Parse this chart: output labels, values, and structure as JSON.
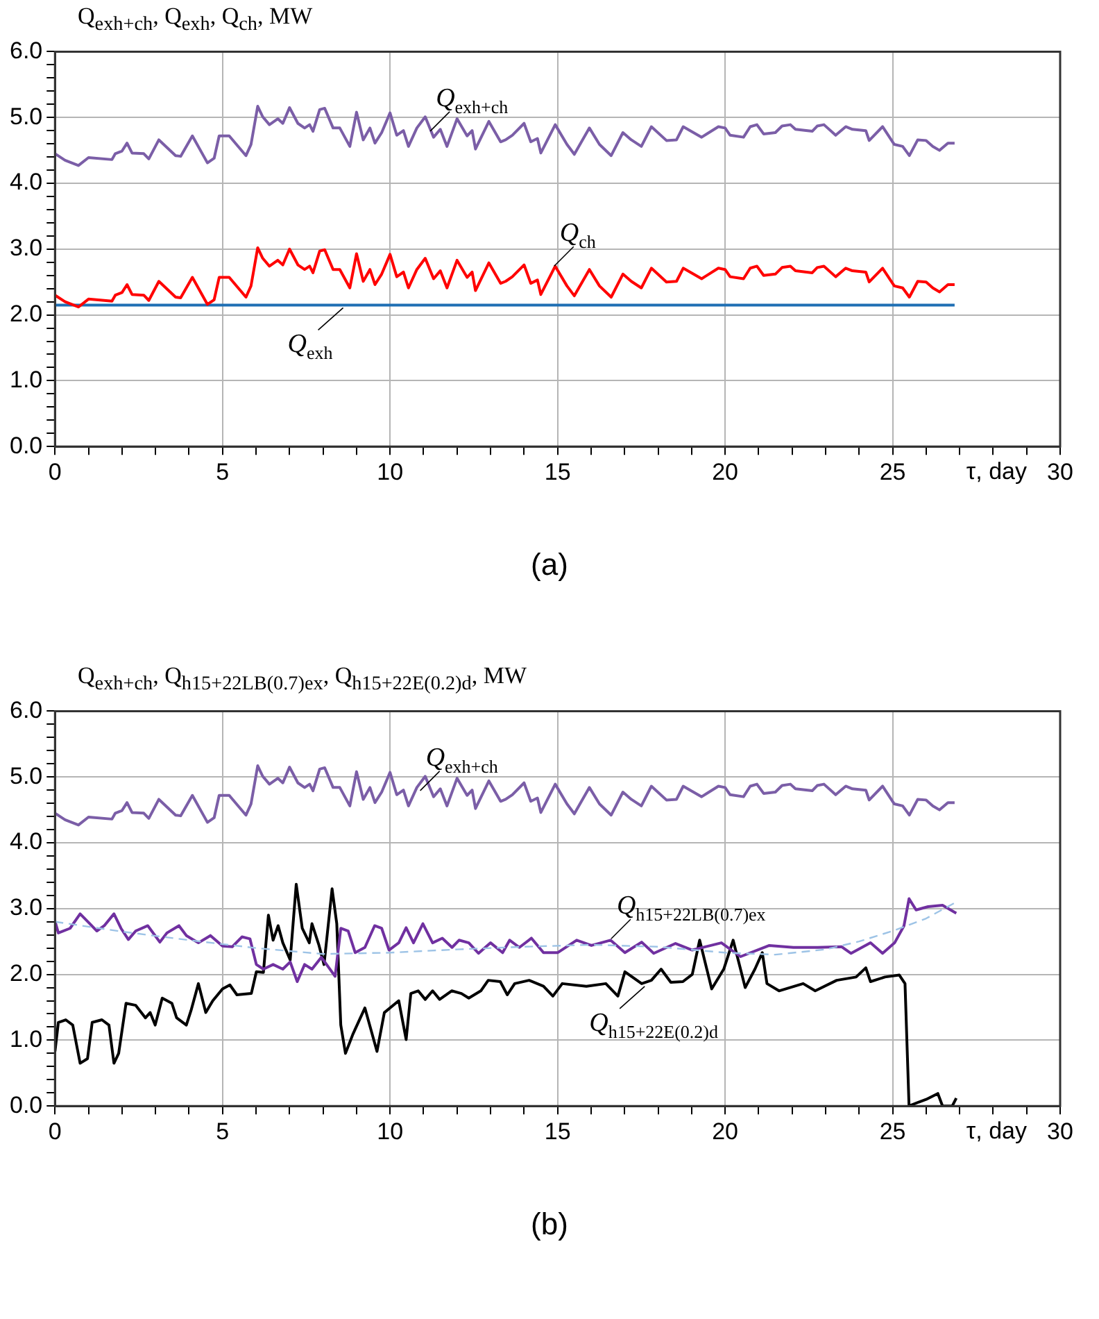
{
  "chart_data": [
    {
      "type": "line",
      "ylabel": "Q$_{exh+ch}$, Q$_{exh}$, Q$_{ch}$, MW",
      "xlabel": "τ, day",
      "grid": true,
      "marker": "none",
      "line_style": "solid",
      "xlim": [
        0,
        30
      ],
      "ylim": [
        0,
        6
      ],
      "xticks": [
        0,
        {
          "value": 1,
          "label": null
        },
        {
          "value": 2,
          "label": null
        },
        {
          "value": 3,
          "label": null
        },
        {
          "value": 4,
          "label": null
        },
        5,
        {
          "value": 6,
          "label": null
        },
        {
          "value": 7,
          "label": null
        },
        {
          "value": 8,
          "label": null
        },
        {
          "value": 9,
          "label": null
        },
        10,
        {
          "value": 11,
          "label": null
        },
        {
          "value": 12,
          "label": null
        },
        {
          "value": 13,
          "label": null
        },
        {
          "value": 14,
          "label": null
        },
        15,
        {
          "value": 16,
          "label": null
        },
        {
          "value": 17,
          "label": null
        },
        {
          "value": 18,
          "label": null
        },
        {
          "value": 19,
          "label": null
        },
        20,
        {
          "value": 21,
          "label": null
        },
        {
          "value": 22,
          "label": null
        },
        {
          "value": 23,
          "label": null
        },
        {
          "value": 24,
          "label": null
        },
        25,
        {
          "value": 26,
          "label": null
        },
        {
          "value": 27,
          "label": null
        },
        {
          "value": 28,
          "label": null
        },
        {
          "value": 29,
          "label": null
        },
        30
      ],
      "yticks": [
        {
          "value": 0,
          "label": "0.0"
        },
        {
          "value": 0.2,
          "label": null
        },
        {
          "value": 0.4,
          "label": null
        },
        {
          "value": 0.6,
          "label": null
        },
        {
          "value": 0.8,
          "label": null
        },
        {
          "value": 1,
          "label": "1.0"
        },
        {
          "value": 1.2,
          "label": null
        },
        {
          "value": 1.4,
          "label": null
        },
        {
          "value": 1.6,
          "label": null
        },
        {
          "value": 1.8,
          "label": null
        },
        {
          "value": 2,
          "label": "2.0"
        },
        {
          "value": 2.2,
          "label": null
        },
        {
          "value": 2.4,
          "label": null
        },
        {
          "value": 2.6,
          "label": null
        },
        {
          "value": 2.8,
          "label": null
        },
        {
          "value": 3,
          "label": "3.0"
        },
        {
          "value": 3.2,
          "label": null
        },
        {
          "value": 3.4,
          "label": null
        },
        {
          "value": 3.6,
          "label": null
        },
        {
          "value": 3.8,
          "label": null
        },
        {
          "value": 4,
          "label": "4.0"
        },
        {
          "value": 4.2,
          "label": null
        },
        {
          "value": 4.4,
          "label": null
        },
        {
          "value": 4.6,
          "label": null
        },
        {
          "value": 4.8,
          "label": null
        },
        {
          "value": 5,
          "label": "5.0"
        },
        {
          "value": 5.2,
          "label": null
        },
        {
          "value": 5.4,
          "label": null
        },
        {
          "value": 5.6,
          "label": null
        },
        {
          "value": 5.8,
          "label": null
        },
        {
          "value": 6,
          "label": "6.0"
        }
      ],
      "series": [
        {
          "color": "#7b5ea7",
          "x": [
            0,
            0.3,
            0.7,
            1.0,
            1.7,
            1.8,
            2.0,
            2.15,
            2.3,
            2.65,
            2.8,
            3.1,
            3.6,
            3.75,
            4.1,
            4.55,
            4.75,
            4.9,
            5.2,
            5.7,
            5.85,
            6.05,
            6.2,
            6.4,
            6.65,
            6.8,
            7.0,
            7.25,
            7.45,
            7.6,
            7.7,
            7.9,
            8.05,
            8.3,
            8.5,
            8.8,
            9.0,
            9.2,
            9.4,
            9.55,
            9.75,
            10.0,
            10.2,
            10.4,
            10.55,
            10.8,
            11.05,
            11.3,
            11.5,
            11.7,
            12.0,
            12.3,
            12.45,
            12.55,
            12.95,
            13.3,
            13.45,
            13.65,
            14.0,
            14.2,
            14.4,
            14.5,
            14.93,
            15.28,
            15.5,
            15.95,
            16.25,
            16.6,
            16.95,
            17.2,
            17.5,
            17.8,
            18.25,
            18.55,
            18.75,
            19.3,
            19.8,
            20.0,
            20.15,
            20.55,
            20.75,
            20.95,
            21.15,
            21.5,
            21.7,
            21.95,
            22.1,
            22.6,
            22.75,
            22.95,
            23.3,
            23.6,
            23.8,
            24.2,
            24.3,
            24.7,
            25.05,
            25.3,
            25.5,
            25.75,
            26.0,
            26.2,
            26.4,
            26.65,
            26.85
          ],
          "values": [
            4.45,
            4.35,
            4.27,
            4.39,
            4.36,
            4.45,
            4.49,
            4.61,
            4.46,
            4.45,
            4.37,
            4.66,
            4.42,
            4.41,
            4.72,
            4.31,
            4.38,
            4.72,
            4.72,
            4.42,
            4.59,
            5.17,
            5.01,
            4.89,
            4.98,
            4.91,
            5.15,
            4.91,
            4.84,
            4.89,
            4.79,
            5.12,
            5.14,
            4.84,
            4.84,
            4.56,
            5.08,
            4.66,
            4.84,
            4.61,
            4.77,
            5.07,
            4.73,
            4.8,
            4.56,
            4.84,
            5.01,
            4.7,
            4.82,
            4.56,
            4.98,
            4.72,
            4.8,
            4.52,
            4.94,
            4.63,
            4.66,
            4.73,
            4.91,
            4.63,
            4.68,
            4.46,
            4.89,
            4.59,
            4.44,
            4.84,
            4.59,
            4.42,
            4.77,
            4.66,
            4.56,
            4.86,
            4.65,
            4.66,
            4.86,
            4.7,
            4.86,
            4.84,
            4.73,
            4.7,
            4.86,
            4.89,
            4.75,
            4.77,
            4.87,
            4.89,
            4.82,
            4.79,
            4.87,
            4.89,
            4.73,
            4.86,
            4.82,
            4.8,
            4.65,
            4.86,
            4.59,
            4.56,
            4.42,
            4.66,
            4.65,
            4.56,
            4.5,
            4.61,
            4.61
          ]
        },
        {
          "color": "#ff0000",
          "x": [
            0,
            0.3,
            0.7,
            1.0,
            1.7,
            1.8,
            2.0,
            2.15,
            2.3,
            2.65,
            2.8,
            3.1,
            3.6,
            3.75,
            4.1,
            4.55,
            4.75,
            4.9,
            5.2,
            5.7,
            5.85,
            6.05,
            6.2,
            6.4,
            6.65,
            6.8,
            7.0,
            7.25,
            7.45,
            7.6,
            7.7,
            7.9,
            8.05,
            8.3,
            8.5,
            8.8,
            9.0,
            9.2,
            9.4,
            9.55,
            9.75,
            10.0,
            10.2,
            10.4,
            10.55,
            10.8,
            11.05,
            11.3,
            11.5,
            11.7,
            12.0,
            12.3,
            12.45,
            12.55,
            12.95,
            13.3,
            13.45,
            13.65,
            14.0,
            14.2,
            14.4,
            14.5,
            14.93,
            15.28,
            15.5,
            15.95,
            16.25,
            16.6,
            16.95,
            17.2,
            17.5,
            17.8,
            18.25,
            18.55,
            18.75,
            19.3,
            19.8,
            20.0,
            20.15,
            20.55,
            20.75,
            20.95,
            21.15,
            21.5,
            21.7,
            21.95,
            22.1,
            22.6,
            22.75,
            22.95,
            23.3,
            23.6,
            23.8,
            24.2,
            24.3,
            24.7,
            25.05,
            25.3,
            25.5,
            25.75,
            26.0,
            26.2,
            26.4,
            26.65,
            26.85
          ],
          "values": [
            2.3,
            2.2,
            2.12,
            2.24,
            2.21,
            2.3,
            2.34,
            2.46,
            2.31,
            2.3,
            2.22,
            2.51,
            2.27,
            2.26,
            2.57,
            2.16,
            2.23,
            2.57,
            2.57,
            2.27,
            2.44,
            3.02,
            2.86,
            2.74,
            2.83,
            2.76,
            3.0,
            2.76,
            2.69,
            2.74,
            2.64,
            2.97,
            2.99,
            2.69,
            2.69,
            2.41,
            2.93,
            2.51,
            2.69,
            2.46,
            2.62,
            2.92,
            2.58,
            2.65,
            2.41,
            2.69,
            2.86,
            2.55,
            2.67,
            2.41,
            2.83,
            2.57,
            2.65,
            2.37,
            2.79,
            2.48,
            2.51,
            2.58,
            2.76,
            2.48,
            2.53,
            2.31,
            2.74,
            2.44,
            2.29,
            2.69,
            2.44,
            2.27,
            2.62,
            2.51,
            2.41,
            2.71,
            2.5,
            2.51,
            2.71,
            2.55,
            2.71,
            2.69,
            2.58,
            2.55,
            2.71,
            2.74,
            2.6,
            2.62,
            2.72,
            2.74,
            2.67,
            2.64,
            2.72,
            2.74,
            2.58,
            2.71,
            2.67,
            2.65,
            2.5,
            2.71,
            2.44,
            2.41,
            2.27,
            2.51,
            2.5,
            2.41,
            2.35,
            2.46,
            2.46
          ]
        },
        {
          "color": "#1f6fb4",
          "x": [
            0,
            26.85
          ],
          "values": [
            2.15,
            2.15
          ]
        }
      ],
      "annotations": [
        {
          "text": "Q$_{exh+ch}$",
          "x": 11.2,
          "y": 4.75
        },
        {
          "text": "Q$_{ch}$",
          "x": 14.9,
          "y": 2.7
        },
        {
          "text": "Q$_{exh}$",
          "x": 8.6,
          "y": 2.15
        },
        "(a)"
      ]
    },
    {
      "type": "line",
      "ylabel": "Q$_{exh+ch}$, Q$_{h15+22LB(0.7)ex}$, Q$_{h15+22E(0.2)d}$, MW",
      "xlabel": "τ, day",
      "grid": true,
      "marker": "none",
      "line_style": "solid",
      "xlim": [
        0,
        30
      ],
      "ylim": [
        0,
        6
      ],
      "xticks": [
        0,
        {
          "value": 1,
          "label": null
        },
        {
          "value": 2,
          "label": null
        },
        {
          "value": 3,
          "label": null
        },
        {
          "value": 4,
          "label": null
        },
        5,
        {
          "value": 6,
          "label": null
        },
        {
          "value": 7,
          "label": null
        },
        {
          "value": 8,
          "label": null
        },
        {
          "value": 9,
          "label": null
        },
        10,
        {
          "value": 11,
          "label": null
        },
        {
          "value": 12,
          "label": null
        },
        {
          "value": 13,
          "label": null
        },
        {
          "value": 14,
          "label": null
        },
        15,
        {
          "value": 16,
          "label": null
        },
        {
          "value": 17,
          "label": null
        },
        {
          "value": 18,
          "label": null
        },
        {
          "value": 19,
          "label": null
        },
        20,
        {
          "value": 21,
          "label": null
        },
        {
          "value": 22,
          "label": null
        },
        {
          "value": 23,
          "label": null
        },
        {
          "value": 24,
          "label": null
        },
        25,
        {
          "value": 26,
          "label": null
        },
        {
          "value": 27,
          "label": null
        },
        {
          "value": 28,
          "label": null
        },
        {
          "value": 29,
          "label": null
        },
        30
      ],
      "yticks": [
        {
          "value": 0,
          "label": "0.0"
        },
        {
          "value": 0.2,
          "label": null
        },
        {
          "value": 0.4,
          "label": null
        },
        {
          "value": 0.6,
          "label": null
        },
        {
          "value": 0.8,
          "label": null
        },
        {
          "value": 1,
          "label": "1.0"
        },
        {
          "value": 1.2,
          "label": null
        },
        {
          "value": 1.4,
          "label": null
        },
        {
          "value": 1.6,
          "label": null
        },
        {
          "value": 1.8,
          "label": null
        },
        {
          "value": 2,
          "label": "2.0"
        },
        {
          "value": 2.2,
          "label": null
        },
        {
          "value": 2.4,
          "label": null
        },
        {
          "value": 2.6,
          "label": null
        },
        {
          "value": 2.8,
          "label": null
        },
        {
          "value": 3,
          "label": "3.0"
        },
        {
          "value": 3.2,
          "label": null
        },
        {
          "value": 3.4,
          "label": null
        },
        {
          "value": 3.6,
          "label": null
        },
        {
          "value": 3.8,
          "label": null
        },
        {
          "value": 4,
          "label": "4.0"
        },
        {
          "value": 4.2,
          "label": null
        },
        {
          "value": 4.4,
          "label": null
        },
        {
          "value": 4.6,
          "label": null
        },
        {
          "value": 4.8,
          "label": null
        },
        {
          "value": 5,
          "label": "5.0"
        },
        {
          "value": 5.2,
          "label": null
        },
        {
          "value": 5.4,
          "label": null
        },
        {
          "value": 5.6,
          "label": null
        },
        {
          "value": 5.8,
          "label": null
        },
        {
          "value": 6,
          "label": "6.0"
        }
      ],
      "series": [
        {
          "color": "#7b5ea7",
          "x": [
            0,
            0.3,
            0.7,
            1.0,
            1.7,
            1.8,
            2.0,
            2.15,
            2.3,
            2.65,
            2.8,
            3.1,
            3.6,
            3.75,
            4.1,
            4.55,
            4.75,
            4.9,
            5.2,
            5.7,
            5.85,
            6.05,
            6.2,
            6.4,
            6.65,
            6.8,
            7.0,
            7.25,
            7.45,
            7.6,
            7.7,
            7.9,
            8.05,
            8.3,
            8.5,
            8.8,
            9.0,
            9.2,
            9.4,
            9.55,
            9.75,
            10.0,
            10.2,
            10.4,
            10.55,
            10.8,
            11.05,
            11.3,
            11.5,
            11.7,
            12.0,
            12.3,
            12.45,
            12.55,
            12.95,
            13.3,
            13.45,
            13.65,
            14.0,
            14.2,
            14.4,
            14.5,
            14.93,
            15.28,
            15.5,
            15.95,
            16.25,
            16.6,
            16.95,
            17.2,
            17.5,
            17.8,
            18.25,
            18.55,
            18.75,
            19.3,
            19.8,
            20.0,
            20.15,
            20.55,
            20.75,
            20.95,
            21.15,
            21.5,
            21.7,
            21.95,
            22.1,
            22.6,
            22.75,
            22.95,
            23.3,
            23.6,
            23.8,
            24.2,
            24.3,
            24.7,
            25.05,
            25.3,
            25.5,
            25.75,
            26.0,
            26.2,
            26.4,
            26.65,
            26.85
          ],
          "values": [
            4.45,
            4.35,
            4.27,
            4.39,
            4.36,
            4.45,
            4.49,
            4.61,
            4.46,
            4.45,
            4.37,
            4.66,
            4.42,
            4.41,
            4.72,
            4.31,
            4.38,
            4.72,
            4.72,
            4.42,
            4.59,
            5.17,
            5.01,
            4.89,
            4.98,
            4.91,
            5.15,
            4.91,
            4.84,
            4.89,
            4.79,
            5.12,
            5.14,
            4.84,
            4.84,
            4.56,
            5.08,
            4.66,
            4.84,
            4.61,
            4.77,
            5.07,
            4.73,
            4.8,
            4.56,
            4.84,
            5.01,
            4.7,
            4.82,
            4.56,
            4.98,
            4.72,
            4.8,
            4.52,
            4.94,
            4.63,
            4.66,
            4.73,
            4.91,
            4.63,
            4.68,
            4.46,
            4.89,
            4.59,
            4.44,
            4.84,
            4.59,
            4.42,
            4.77,
            4.66,
            4.56,
            4.86,
            4.65,
            4.66,
            4.86,
            4.7,
            4.86,
            4.84,
            4.73,
            4.7,
            4.86,
            4.89,
            4.75,
            4.77,
            4.87,
            4.89,
            4.82,
            4.79,
            4.87,
            4.89,
            4.73,
            4.86,
            4.82,
            4.8,
            4.65,
            4.86,
            4.59,
            4.56,
            4.42,
            4.66,
            4.65,
            4.56,
            4.5,
            4.61,
            4.61
          ]
        },
        {
          "color": "#9dc3e6",
          "line_style": "dashed",
          "x": [
            0,
            2,
            4,
            6,
            8,
            10,
            12,
            14,
            16,
            18,
            20,
            21.5,
            23,
            24,
            25,
            26,
            26.9
          ],
          "values": [
            2.8,
            2.65,
            2.52,
            2.4,
            2.31,
            2.33,
            2.38,
            2.42,
            2.45,
            2.42,
            2.33,
            2.3,
            2.38,
            2.5,
            2.66,
            2.85,
            3.1
          ]
        },
        {
          "color": "#7030a0",
          "x": [
            0,
            0.1,
            0.45,
            0.75,
            1.04,
            1.25,
            1.47,
            1.76,
            1.97,
            2.19,
            2.41,
            2.77,
            3.13,
            3.34,
            3.7,
            3.92,
            4.28,
            4.64,
            5.0,
            5.29,
            5.58,
            5.82,
            6.01,
            6.22,
            6.51,
            6.8,
            7.02,
            7.23,
            7.45,
            7.67,
            7.95,
            8.36,
            8.53,
            8.75,
            8.96,
            9.25,
            9.54,
            9.75,
            9.97,
            10.26,
            10.48,
            10.7,
            10.98,
            11.27,
            11.56,
            11.85,
            12.06,
            12.35,
            12.64,
            13.0,
            13.36,
            13.57,
            13.86,
            14.22,
            14.58,
            15.0,
            15.57,
            16.01,
            16.58,
            17.01,
            17.51,
            17.87,
            18.52,
            19.02,
            19.89,
            20.46,
            21.32,
            22.04,
            22.76,
            23.48,
            23.76,
            24.34,
            24.7,
            25.06,
            25.34,
            25.49,
            25.7,
            26.06,
            26.49,
            26.9
          ],
          "values": [
            2.81,
            2.63,
            2.7,
            2.92,
            2.77,
            2.66,
            2.74,
            2.92,
            2.7,
            2.53,
            2.66,
            2.74,
            2.49,
            2.63,
            2.74,
            2.59,
            2.48,
            2.59,
            2.43,
            2.42,
            2.57,
            2.54,
            2.15,
            2.08,
            2.15,
            2.08,
            2.19,
            1.89,
            2.15,
            2.08,
            2.26,
            1.97,
            2.7,
            2.66,
            2.33,
            2.41,
            2.74,
            2.7,
            2.37,
            2.48,
            2.71,
            2.48,
            2.77,
            2.48,
            2.55,
            2.41,
            2.52,
            2.48,
            2.32,
            2.48,
            2.33,
            2.52,
            2.41,
            2.55,
            2.33,
            2.33,
            2.52,
            2.44,
            2.52,
            2.33,
            2.49,
            2.32,
            2.47,
            2.37,
            2.48,
            2.27,
            2.44,
            2.41,
            2.41,
            2.42,
            2.32,
            2.48,
            2.32,
            2.48,
            2.74,
            3.15,
            2.98,
            3.03,
            3.05,
            2.93
          ]
        },
        {
          "color": "#000000",
          "x": [
            0,
            0.1,
            0.32,
            0.53,
            0.75,
            0.97,
            1.11,
            1.4,
            1.61,
            1.76,
            1.9,
            2.12,
            2.41,
            2.7,
            2.84,
            2.99,
            3.2,
            3.49,
            3.63,
            3.92,
            4.06,
            4.28,
            4.5,
            4.71,
            5.0,
            5.22,
            5.43,
            5.86,
            6.01,
            6.22,
            6.37,
            6.51,
            6.66,
            6.8,
            7.02,
            7.2,
            7.38,
            7.59,
            7.67,
            7.88,
            8.03,
            8.27,
            8.41,
            8.53,
            8.67,
            8.89,
            9.25,
            9.61,
            9.83,
            10.26,
            10.48,
            10.62,
            10.84,
            11.05,
            11.27,
            11.48,
            11.84,
            12.13,
            12.35,
            12.71,
            12.93,
            13.29,
            13.5,
            13.72,
            14.15,
            14.58,
            14.86,
            15.14,
            15.86,
            16.44,
            16.8,
            17.01,
            17.51,
            17.8,
            18.09,
            18.38,
            18.74,
            19.02,
            19.24,
            19.6,
            19.96,
            20.24,
            20.6,
            20.89,
            21.11,
            21.25,
            21.61,
            22.33,
            22.69,
            23.33,
            23.91,
            24.2,
            24.34,
            24.77,
            25.2,
            25.37,
            25.49,
            25.78,
            26.0,
            26.35,
            26.49,
            26.78,
            26.9
          ],
          "values": [
            0.83,
            1.27,
            1.31,
            1.23,
            0.65,
            0.72,
            1.27,
            1.31,
            1.23,
            0.65,
            0.8,
            1.56,
            1.53,
            1.34,
            1.42,
            1.23,
            1.64,
            1.56,
            1.34,
            1.23,
            1.45,
            1.86,
            1.42,
            1.6,
            1.78,
            1.84,
            1.69,
            1.71,
            2.04,
            2.03,
            2.9,
            2.52,
            2.74,
            2.48,
            2.22,
            3.37,
            2.7,
            2.48,
            2.77,
            2.44,
            2.15,
            3.3,
            2.77,
            1.23,
            0.8,
            1.09,
            1.49,
            0.83,
            1.42,
            1.6,
            1.01,
            1.71,
            1.75,
            1.62,
            1.75,
            1.62,
            1.75,
            1.71,
            1.64,
            1.75,
            1.91,
            1.89,
            1.69,
            1.86,
            1.91,
            1.82,
            1.67,
            1.86,
            1.82,
            1.86,
            1.67,
            2.04,
            1.86,
            1.91,
            2.08,
            1.88,
            1.89,
            2.0,
            2.52,
            1.78,
            2.08,
            2.52,
            1.8,
            2.08,
            2.33,
            1.86,
            1.75,
            1.86,
            1.75,
            1.91,
            1.96,
            2.1,
            1.89,
            1.96,
            1.99,
            1.86,
            0,
            0.06,
            0.1,
            0.19,
            0,
            0,
            0.12
          ]
        }
      ],
      "annotations": [
        {
          "text": "Q$_{exh+ch}$",
          "x": 10.9,
          "y": 4.75
        },
        {
          "text": "Q$_{h15+22LB(0.7)ex}$",
          "x": 16.6,
          "y": 2.5
        },
        {
          "text": "Q$_{h15+22E(0.2)d}$",
          "x": 17.6,
          "y": 1.86
        },
        "(b)"
      ]
    }
  ]
}
